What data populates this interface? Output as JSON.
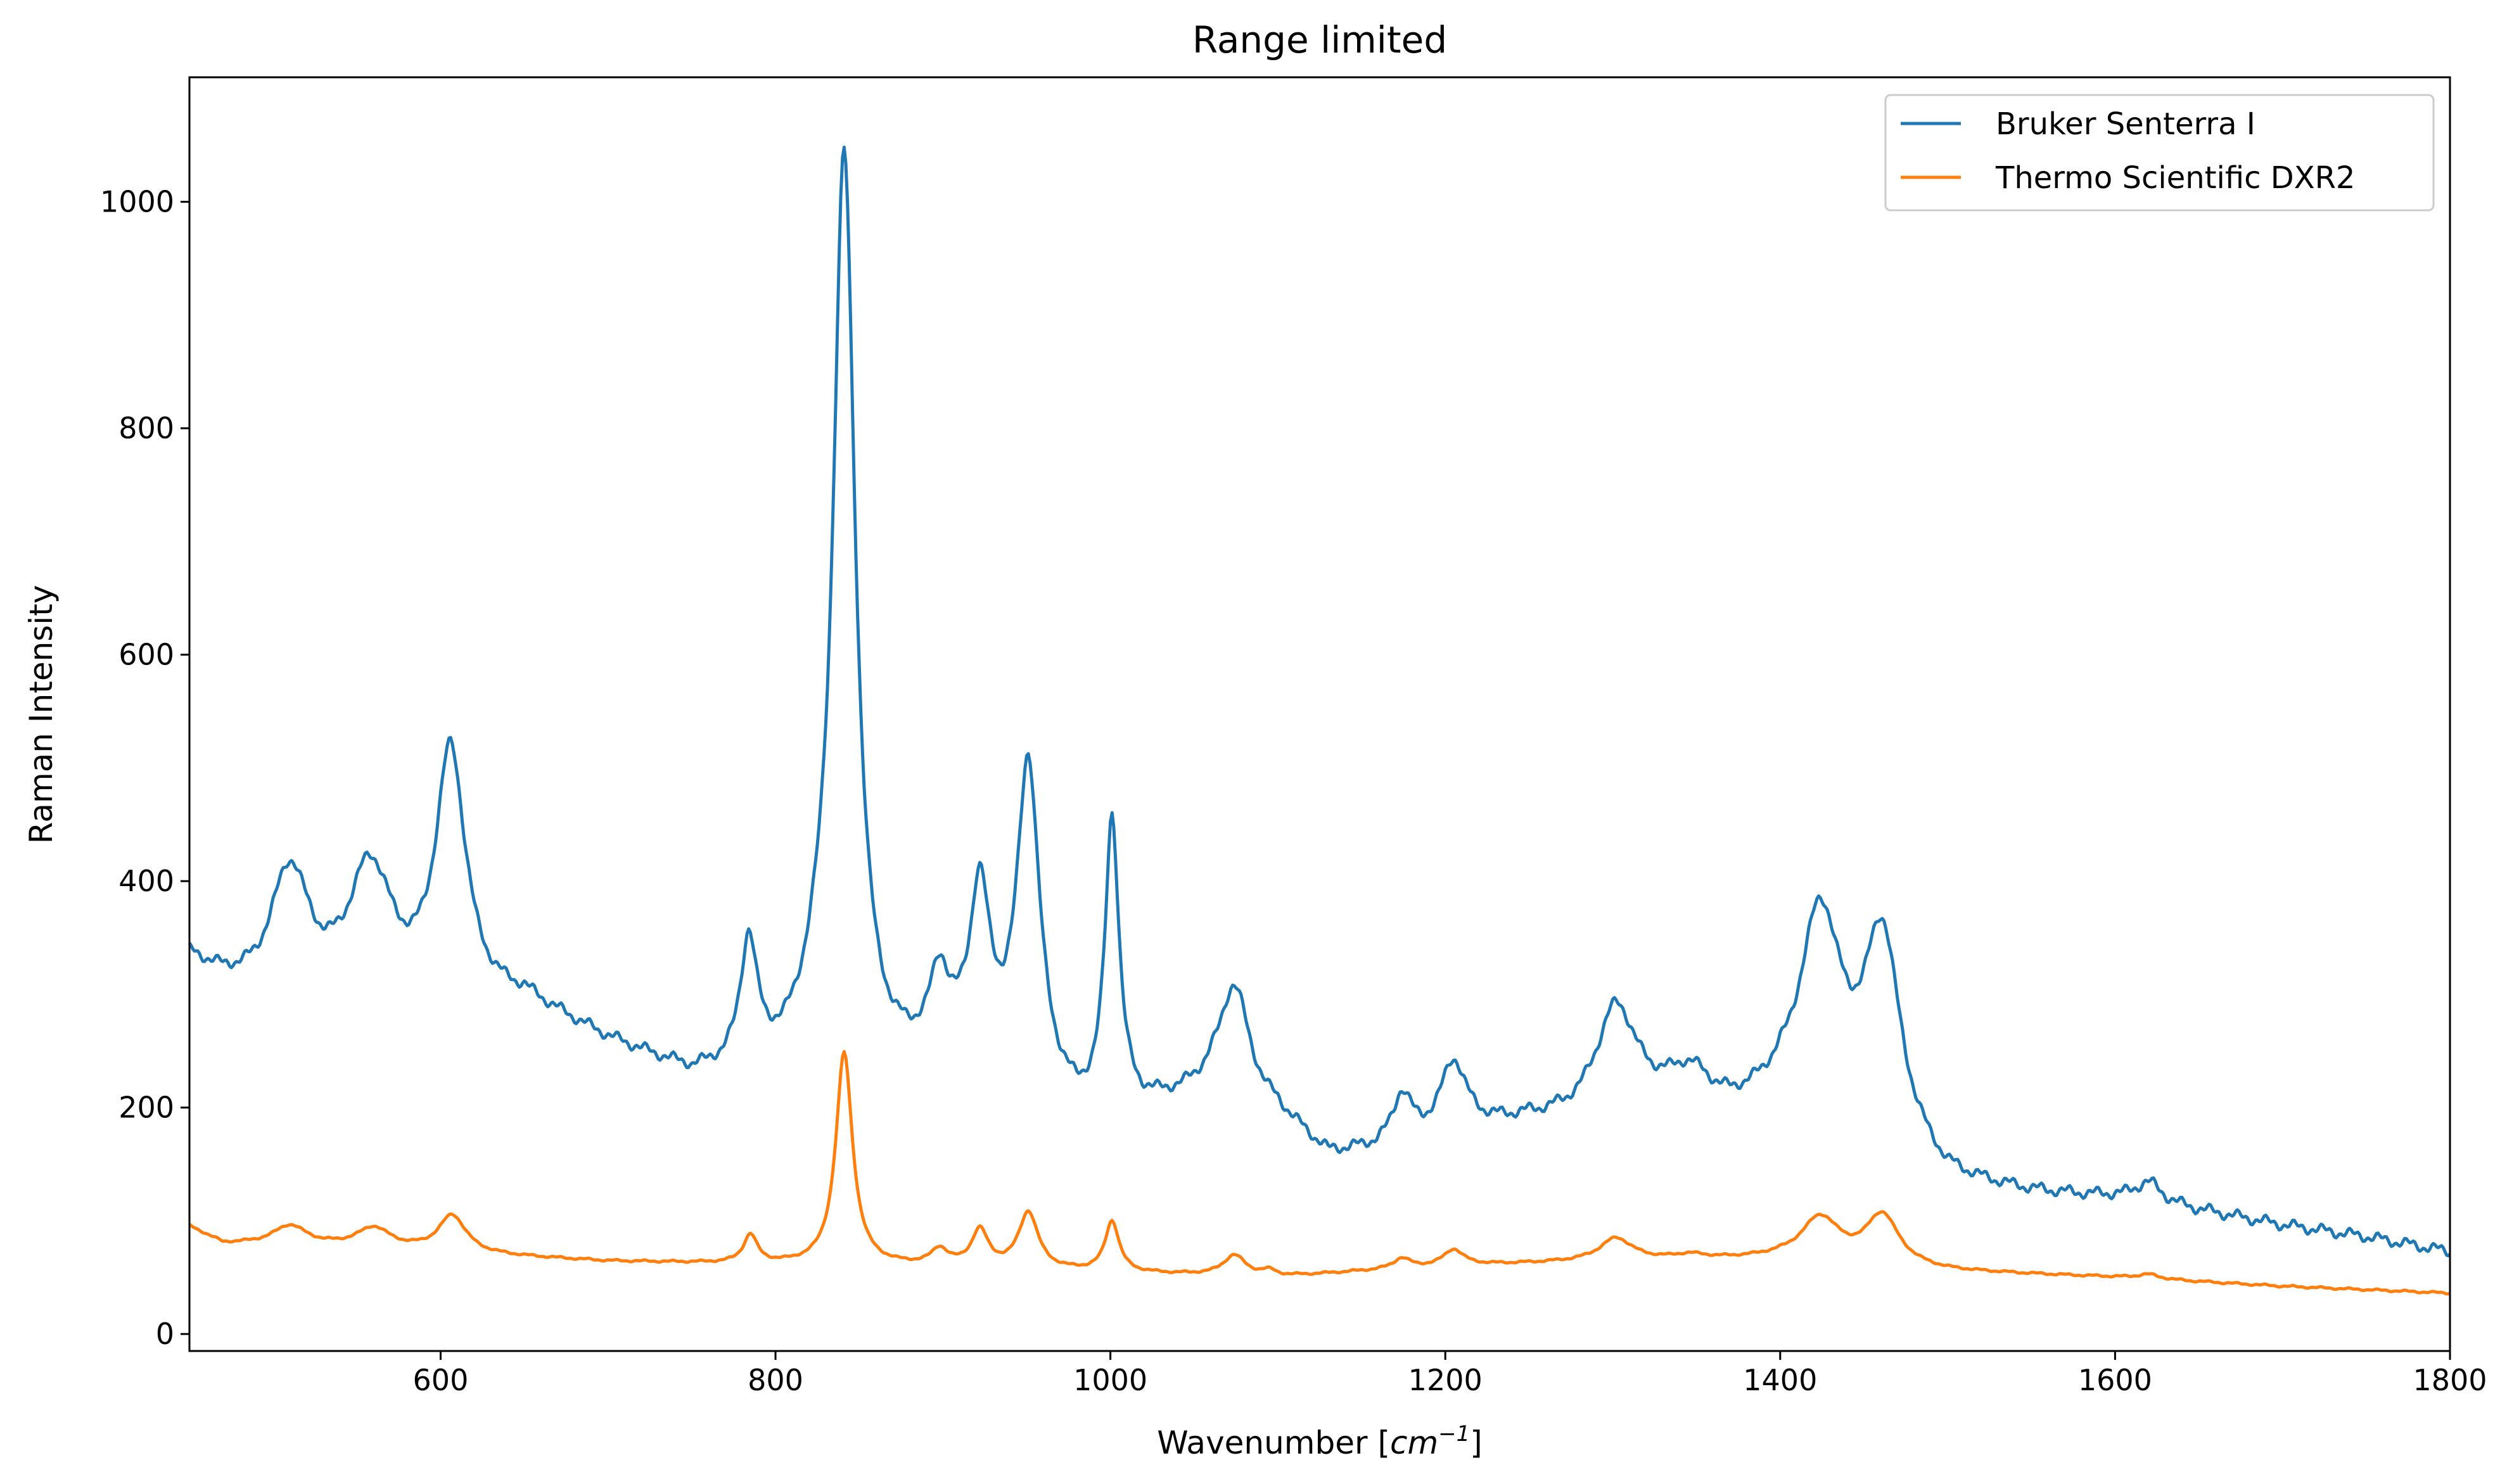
{
  "chart_data": {
    "type": "line",
    "title": "Range limited",
    "xlabel": "Wavenumber [cm⁻¹]",
    "xlabel_main": "Wavenumber [",
    "xlabel_unit": "cm",
    "xlabel_exp": "−1",
    "xlabel_close": "]",
    "ylabel": "Raman Intensity",
    "xlim": [
      450,
      1800
    ],
    "ylim": [
      -15,
      1110
    ],
    "xticks": [
      600,
      800,
      1000,
      1200,
      1400,
      1600,
      1800
    ],
    "yticks": [
      0,
      200,
      400,
      600,
      800,
      1000
    ],
    "grid": false,
    "legend_position": "top-right",
    "series": [
      {
        "name": "Bruker Senterra I",
        "color": "#1f77b4",
        "peaks": [
          [
            510,
            110,
            14
          ],
          [
            558,
            118,
            16
          ],
          [
            606,
            222,
            11
          ],
          [
            784,
            110,
            6
          ],
          [
            825,
            45,
            14
          ],
          [
            841,
            800,
            8
          ],
          [
            898,
            65,
            7
          ],
          [
            922,
            135,
            7
          ],
          [
            951,
            280,
            8
          ],
          [
            1001,
            255,
            5
          ],
          [
            1074,
            100,
            11
          ],
          [
            1174,
            45,
            7
          ],
          [
            1205,
            60,
            9
          ],
          [
            1302,
            95,
            15
          ],
          [
            1346,
            30,
            15
          ],
          [
            1424,
            175,
            15
          ],
          [
            1461,
            180,
            13
          ],
          [
            1620,
            18,
            10
          ]
        ],
        "baseline": [
          [
            450,
            330
          ],
          [
            470,
            310
          ],
          [
            490,
            298
          ],
          [
            520,
            292
          ],
          [
            560,
            285
          ],
          [
            620,
            285
          ],
          [
            650,
            290
          ],
          [
            700,
            255
          ],
          [
            750,
            225
          ],
          [
            800,
            225
          ],
          [
            830,
            218
          ],
          [
            870,
            225
          ],
          [
            920,
            245
          ],
          [
            980,
            190
          ],
          [
            1020,
            195
          ],
          [
            1060,
            210
          ],
          [
            1100,
            190
          ],
          [
            1130,
            155
          ],
          [
            1170,
            160
          ],
          [
            1200,
            175
          ],
          [
            1250,
            185
          ],
          [
            1280,
            185
          ],
          [
            1330,
            195
          ],
          [
            1370,
            190
          ],
          [
            1400,
            200
          ],
          [
            1440,
            180
          ],
          [
            1500,
            130
          ],
          [
            1550,
            122
          ],
          [
            1600,
            118
          ],
          [
            1660,
            105
          ],
          [
            1700,
            95
          ],
          [
            1750,
            85
          ],
          [
            1800,
            72
          ]
        ],
        "noise": 3.5
      },
      {
        "name": "Thermo Scientific DXR2",
        "color": "#ff7f0e",
        "peaks": [
          [
            510,
            17,
            12
          ],
          [
            560,
            17,
            12
          ],
          [
            607,
            33,
            10
          ],
          [
            785,
            25,
            5
          ],
          [
            841,
            188,
            6
          ],
          [
            898,
            14,
            6
          ],
          [
            922,
            32,
            6
          ],
          [
            951,
            50,
            7
          ],
          [
            1001,
            45,
            5
          ],
          [
            1074,
            18,
            8
          ],
          [
            1095,
            5,
            6
          ],
          [
            1174,
            9,
            6
          ],
          [
            1205,
            14,
            7
          ],
          [
            1302,
            20,
            12
          ],
          [
            1346,
            4,
            12
          ],
          [
            1424,
            38,
            14
          ],
          [
            1461,
            44,
            12
          ],
          [
            1620,
            4,
            8
          ]
        ],
        "baseline": [
          [
            450,
            95
          ],
          [
            470,
            80
          ],
          [
            520,
            78
          ],
          [
            560,
            76
          ],
          [
            620,
            70
          ],
          [
            700,
            64
          ],
          [
            800,
            61
          ],
          [
            900,
            59
          ],
          [
            1000,
            54
          ],
          [
            1050,
            52
          ],
          [
            1100,
            50
          ],
          [
            1200,
            60
          ],
          [
            1300,
            64
          ],
          [
            1400,
            66
          ],
          [
            1500,
            55
          ],
          [
            1600,
            50
          ],
          [
            1700,
            42
          ],
          [
            1800,
            36
          ]
        ],
        "noise": 0.6
      }
    ]
  }
}
